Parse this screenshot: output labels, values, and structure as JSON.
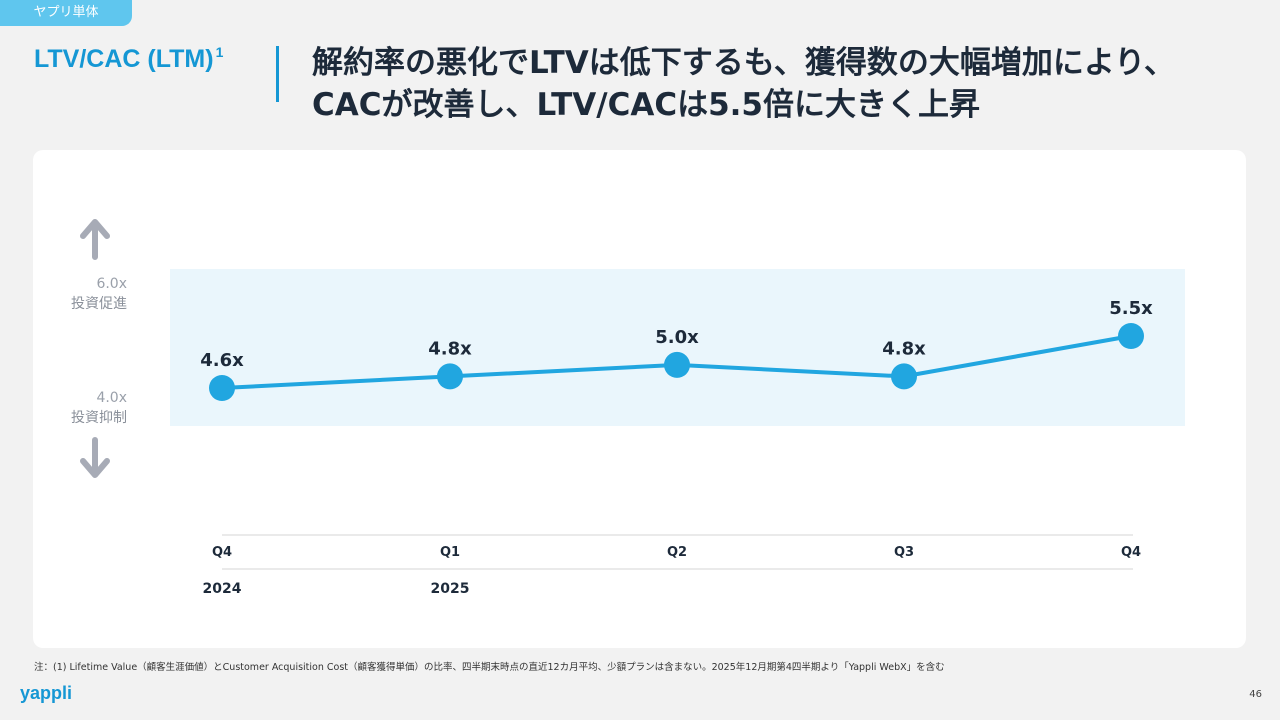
{
  "tag": "ヤプリ単体",
  "section_title": "LTV/CAC (LTM)",
  "section_footnote_mark": "1",
  "headline": {
    "line1": "解約率の悪化でLTVは低下するも、獲得数の大幅増加により、",
    "line2": "CACが改善し、LTV/CACは5.5倍に大きく上昇"
  },
  "colors": {
    "accent": "#1597d4",
    "line": "#21a6e0",
    "band": "#eaf6fc",
    "arrow": "#a7abb6"
  },
  "chart_data": {
    "type": "line",
    "title": "LTV/CAC (LTM)",
    "categories": [
      "Q4",
      "Q1",
      "Q2",
      "Q3",
      "Q4"
    ],
    "years": [
      "2024",
      "2025",
      "",
      "",
      ""
    ],
    "values": [
      4.6,
      4.8,
      5.0,
      4.8,
      5.5
    ],
    "value_labels": [
      "4.6x",
      "4.8x",
      "5.0x",
      "4.8x",
      "5.5x"
    ],
    "band": {
      "low": 4.0,
      "high": 6.0
    },
    "band_labels": {
      "high_value": "6.0x",
      "high_text": "投資促進",
      "low_value": "4.0x",
      "low_text": "投資抑制"
    },
    "ylim": [
      4.0,
      6.0
    ]
  },
  "footnote": "注：(1) Lifetime Value（顧客生涯価値）とCustomer Acquisition Cost（顧客獲得単価）の比率、四半期末時点の直近12カ月平均、少額プランは含まない。2025年12月期第4四半期より「Yappli WebX」を含む",
  "logo": "yappli",
  "page_number": "46"
}
